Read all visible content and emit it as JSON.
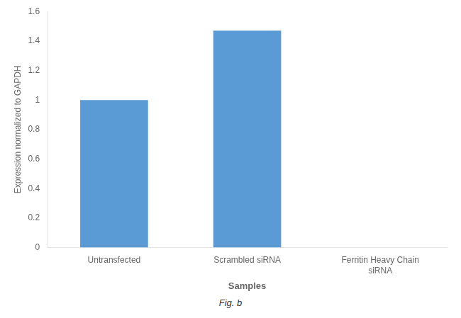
{
  "chart_data": {
    "type": "bar",
    "categories": [
      "Untransfected",
      "Scrambled siRNA",
      "Ferritin Heavy Chain\nsiRNA"
    ],
    "values": [
      1.0,
      1.47,
      0.0
    ],
    "color": "#5B9BD5",
    "ylabel": "Expression normalized to GAPDH",
    "xlabel": "Samples",
    "ylim": [
      0,
      1.6
    ],
    "yticks": [
      0,
      0.2,
      0.4,
      0.6,
      0.8,
      1.0,
      1.2,
      1.4,
      1.6
    ],
    "grid": false,
    "annotations": [
      "Fig. b"
    ]
  }
}
